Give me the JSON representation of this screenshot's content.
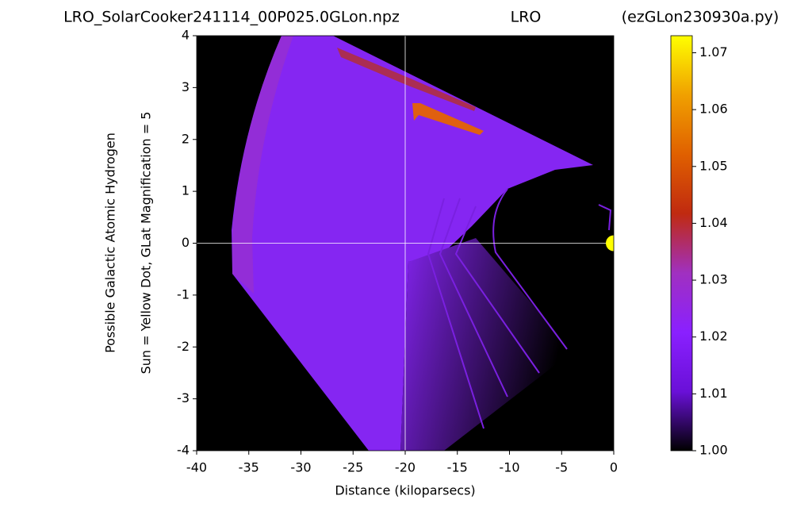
{
  "chart_data": {
    "type": "heatmap",
    "title_left": "LRO_SolarCooker241114_00P025.0GLon.npz",
    "title": "LRO",
    "title_right": "(ezGLon230930a.py)",
    "xlabel": "Distance (kiloparsecs)",
    "ylabel": [
      "Possible Galactic Atomic Hydrogen",
      "Sun = Yellow Dot, GLat Magnification = 5"
    ],
    "xlim": [
      -40,
      0
    ],
    "ylim": [
      -4,
      4
    ],
    "xticks": [
      -40,
      -35,
      -30,
      -25,
      -20,
      -15,
      -10,
      -5,
      0
    ],
    "yticks": [
      -4,
      -3,
      -2,
      -1,
      0,
      1,
      2,
      3,
      4
    ],
    "crosshair": {
      "x": -20,
      "y": 0,
      "color": "#ffffff"
    },
    "marker": {
      "x": 0,
      "y": 0,
      "color": "#ffff00"
    },
    "colorbar": {
      "lim": [
        1.0,
        1.073
      ],
      "ticks": [
        {
          "value": 1.0,
          "label": "1.00"
        },
        1.01,
        1.02,
        1.03,
        1.04,
        1.05,
        1.06,
        1.07
      ],
      "colors": [
        "#000000",
        "#6a10d8",
        "#8a20ff",
        "#a030c0",
        "#c02a10",
        "#e06000",
        "#f0a000",
        "#ffff00"
      ]
    }
  }
}
